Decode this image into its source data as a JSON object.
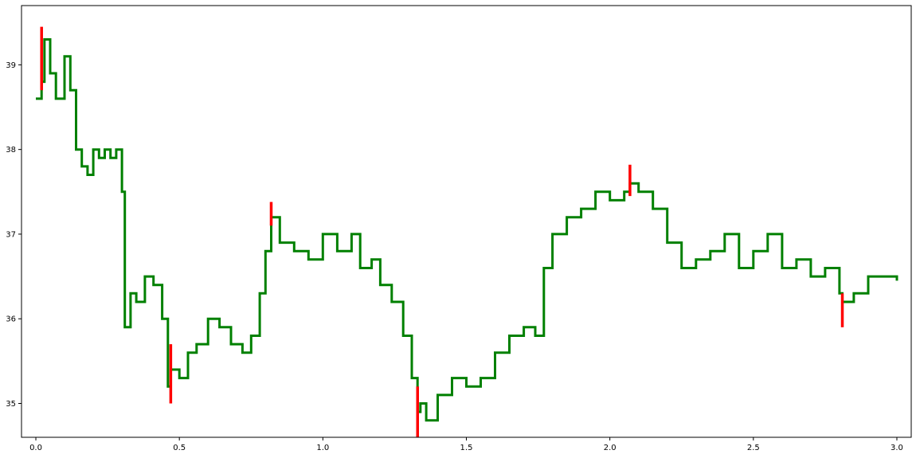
{
  "chart_data": {
    "type": "line",
    "title": "",
    "xlabel": "",
    "ylabel": "",
    "xlim": [
      -0.05,
      3.05
    ],
    "ylim": [
      34.6,
      39.7
    ],
    "x_ticks": [
      0.0,
      0.5,
      1.0,
      1.5,
      2.0,
      2.5,
      3.0
    ],
    "x_tick_labels": [
      "0.0",
      "0.5",
      "1.0",
      "1.5",
      "2.0",
      "2.5",
      "3.0"
    ],
    "y_ticks": [
      35,
      36,
      37,
      38,
      39
    ],
    "y_tick_labels": [
      "35",
      "36",
      "37",
      "38",
      "39"
    ],
    "grid": false,
    "colors": {
      "line": "#008000",
      "highlight": "#ff0000",
      "axes": "#000000",
      "background": "#ffffff"
    },
    "series": [
      {
        "color": "#008000",
        "x": [
          0.0,
          0.02,
          0.03,
          0.05,
          0.07,
          0.1,
          0.12,
          0.14,
          0.16,
          0.18,
          0.2,
          0.22,
          0.24,
          0.26,
          0.28,
          0.3,
          0.31,
          0.33,
          0.35,
          0.38,
          0.41,
          0.44,
          0.46,
          0.47,
          0.5,
          0.53,
          0.56,
          0.6,
          0.64,
          0.68,
          0.72,
          0.75,
          0.78,
          0.8,
          0.82,
          0.85,
          0.9,
          0.95,
          1.0,
          1.05,
          1.1,
          1.13,
          1.17,
          1.2,
          1.24,
          1.28,
          1.31,
          1.33,
          1.34,
          1.36,
          1.4,
          1.45,
          1.5,
          1.55,
          1.6,
          1.65,
          1.7,
          1.74,
          1.77,
          1.8,
          1.85,
          1.9,
          1.95,
          2.0,
          2.05,
          2.07,
          2.1,
          2.15,
          2.2,
          2.25,
          2.3,
          2.35,
          2.4,
          2.45,
          2.5,
          2.55,
          2.6,
          2.65,
          2.7,
          2.75,
          2.8,
          2.81,
          2.85,
          2.9,
          2.95,
          3.0
        ],
        "y": [
          38.6,
          38.8,
          39.3,
          38.9,
          38.6,
          39.1,
          38.7,
          38.0,
          37.8,
          37.7,
          38.0,
          37.9,
          38.0,
          37.9,
          38.0,
          37.5,
          35.9,
          36.3,
          36.2,
          36.5,
          36.4,
          36.0,
          35.2,
          35.4,
          35.3,
          35.6,
          35.7,
          36.0,
          35.9,
          35.7,
          35.6,
          35.8,
          36.3,
          36.8,
          37.2,
          36.9,
          36.8,
          36.7,
          37.0,
          36.8,
          37.0,
          36.6,
          36.7,
          36.4,
          36.2,
          35.8,
          35.3,
          34.9,
          35.0,
          34.8,
          35.1,
          35.3,
          35.2,
          35.3,
          35.6,
          35.8,
          35.9,
          35.8,
          36.6,
          37.0,
          37.2,
          37.3,
          37.5,
          37.4,
          37.5,
          37.6,
          37.5,
          37.3,
          36.9,
          36.6,
          36.7,
          36.8,
          37.0,
          36.6,
          36.8,
          37.0,
          36.6,
          36.7,
          36.5,
          36.6,
          36.3,
          36.2,
          36.3,
          36.5,
          36.5,
          36.45
        ]
      }
    ],
    "highlights": [
      {
        "x": 0.02,
        "y_low": 38.7,
        "y_high": 39.45,
        "color": "#ff0000"
      },
      {
        "x": 0.47,
        "y_low": 35.0,
        "y_high": 35.7,
        "color": "#ff0000"
      },
      {
        "x": 0.82,
        "y_low": 37.1,
        "y_high": 37.38,
        "color": "#ff0000"
      },
      {
        "x": 1.33,
        "y_low": 34.6,
        "y_high": 35.2,
        "color": "#ff0000"
      },
      {
        "x": 2.07,
        "y_low": 37.45,
        "y_high": 37.82,
        "color": "#ff0000"
      },
      {
        "x": 2.81,
        "y_low": 35.9,
        "y_high": 36.3,
        "color": "#ff0000"
      }
    ]
  }
}
